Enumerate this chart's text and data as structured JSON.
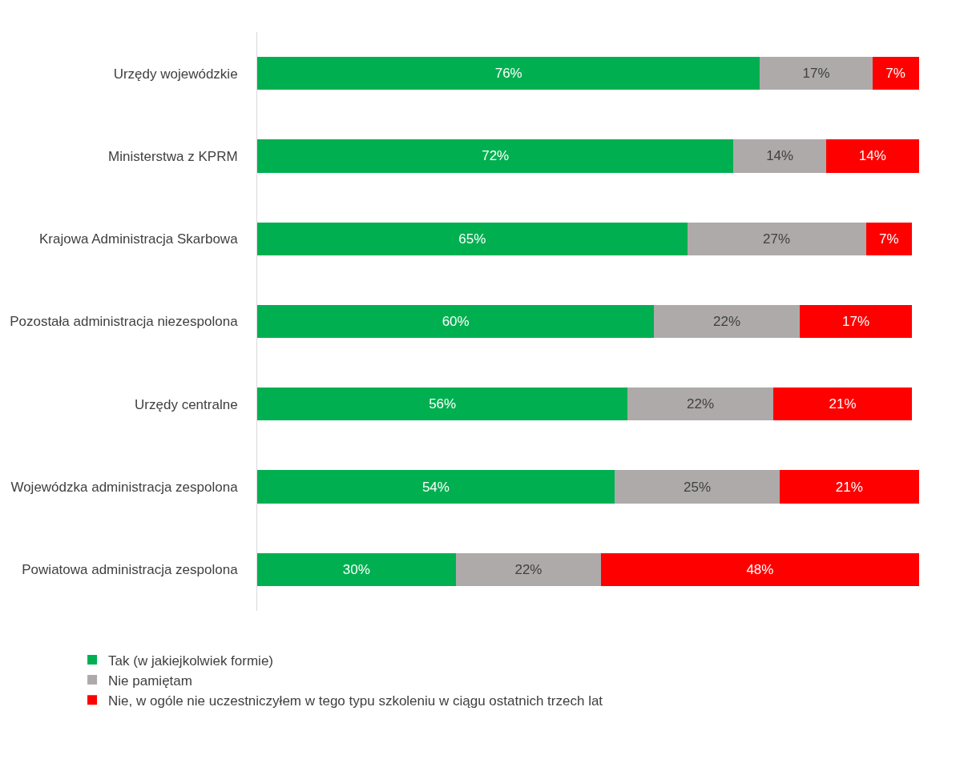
{
  "chart_data": {
    "type": "bar",
    "orientation": "horizontal",
    "stacked": true,
    "legend": "bottom",
    "categories": [
      "Urzędy wojewódzkie",
      "Ministerstwa z KPRM",
      "Krajowa Administracja Skarbowa",
      "Pozostała administracja niezespolona",
      "Urzędy centralne",
      "Wojewódzka administracja zespolona",
      "Powiatowa administracja zespolona"
    ],
    "series": [
      {
        "name": "Tak (w jakiejkolwiek formie)",
        "color": "#00b050",
        "values": [
          76,
          72,
          65,
          60,
          56,
          54,
          30
        ],
        "value_labels": [
          "76%",
          "72%",
          "65%",
          "60%",
          "56%",
          "54%",
          "30%"
        ]
      },
      {
        "name": "Nie pamiętam",
        "color": "#aeaaaa",
        "values": [
          17,
          14,
          27,
          22,
          22,
          25,
          22
        ],
        "value_labels": [
          "17%",
          "14%",
          "27%",
          "22%",
          "22%",
          "25%",
          "22%"
        ]
      },
      {
        "name": "Nie, w ogóle nie uczestniczyłem w tego typu szkoleniu w ciągu ostatnich trzech lat",
        "color": "#ff0000",
        "values": [
          7,
          14,
          7,
          17,
          21,
          21,
          48
        ],
        "value_labels": [
          "7%",
          "14%",
          "7%",
          "17%",
          "21%",
          "21%",
          "48%"
        ]
      }
    ]
  }
}
